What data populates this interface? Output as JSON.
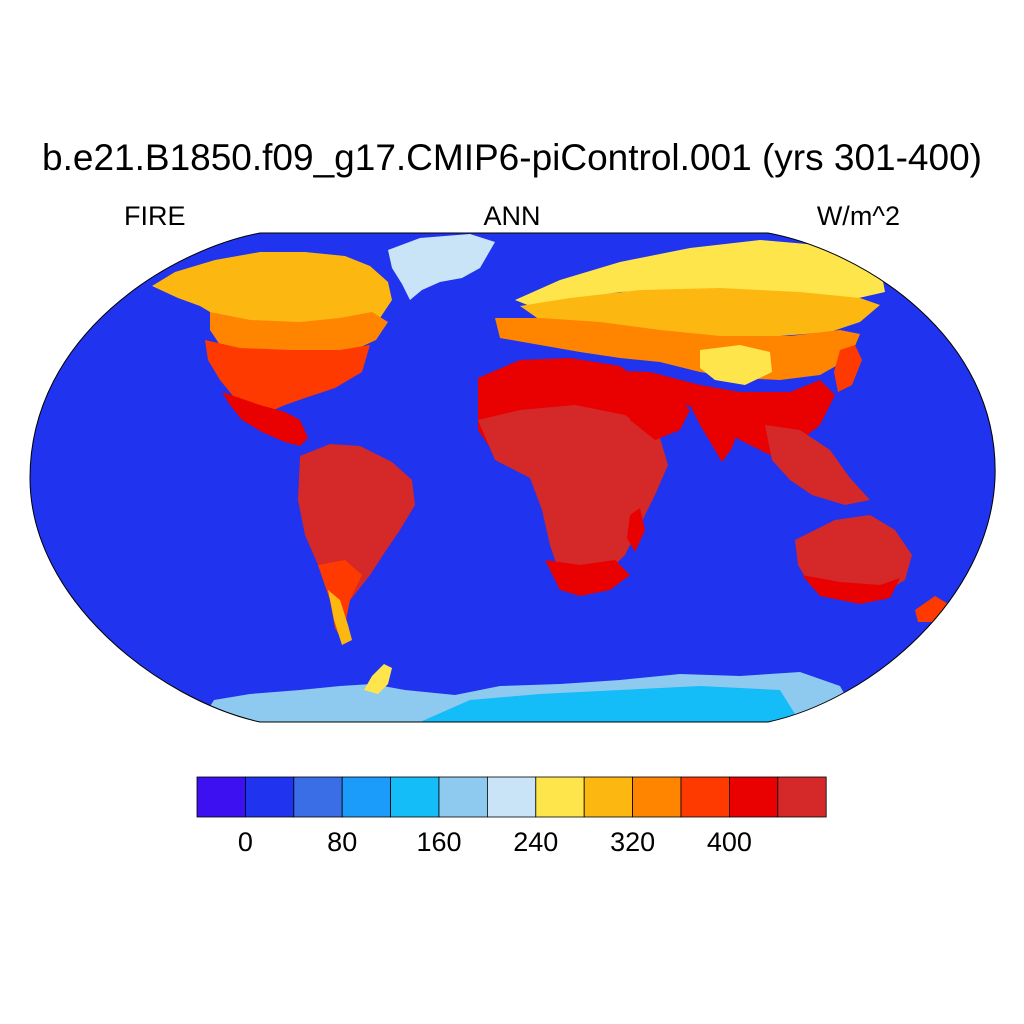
{
  "header": {
    "title": "b.e21.B1850.f09_g17.CMIP6-piControl.001 (yrs 301-400)",
    "left_label": "FIRE",
    "center_label": "ANN",
    "right_label": "W/m^2"
  },
  "map": {
    "projection": "Robinson",
    "variable": "FIRE",
    "season": "ANN",
    "units": "W/m^2",
    "ocean_color": "#2033ee",
    "regions": [
      {
        "name": "Tropical Africa",
        "level": 11
      },
      {
        "name": "Amazon",
        "level": 11
      },
      {
        "name": "Sahara",
        "level": 10
      },
      {
        "name": "Arabia",
        "level": 10
      },
      {
        "name": "India",
        "level": 10
      },
      {
        "name": "Southeast Asia",
        "level": 11
      },
      {
        "name": "Australia",
        "level": 11
      },
      {
        "name": "Southern Africa",
        "level": 10
      },
      {
        "name": "Southern South America",
        "level": 9
      },
      {
        "name": "North America",
        "level": 9
      },
      {
        "name": "Canada",
        "level": 8
      },
      {
        "name": "Siberia",
        "level": 7
      },
      {
        "name": "Tibetan Plateau",
        "level": 7
      },
      {
        "name": "Greenland",
        "level": 6
      },
      {
        "name": "Antarctica",
        "level": 5
      }
    ]
  },
  "colorbar": {
    "colors": [
      "#3c10f0",
      "#2033ee",
      "#3a6ee6",
      "#1c9cfa",
      "#14bcf8",
      "#8ecaef",
      "#c9e4f6",
      "#ffe54c",
      "#fdb711",
      "#ff8400",
      "#fe3a00",
      "#e90000",
      "#d52828"
    ],
    "tick_labels": [
      "0",
      "80",
      "160",
      "240",
      "320",
      "400"
    ],
    "tick_positions": [
      1,
      3,
      5,
      7,
      9,
      11
    ]
  }
}
